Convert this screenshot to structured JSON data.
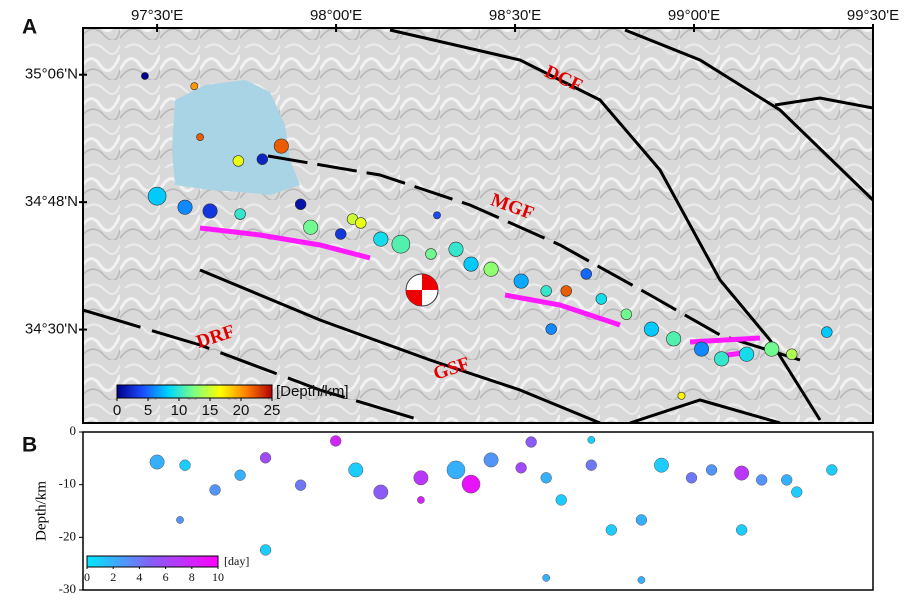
{
  "panel_a": {
    "label": "A",
    "xlim": [
      97.293,
      99.5
    ],
    "ylim": [
      34.28,
      35.21
    ],
    "lon_ticks": [
      {
        "value": 97.5,
        "label": "97°30'E"
      },
      {
        "value": 98.0,
        "label": "98°00'E"
      },
      {
        "value": 98.5,
        "label": "98°30'E"
      },
      {
        "value": 99.0,
        "label": "99°00'E"
      },
      {
        "value": 99.5,
        "label": "99°30'E"
      }
    ],
    "lat_ticks": [
      {
        "value": 35.1,
        "label": "35°06'N"
      },
      {
        "value": 34.8,
        "label": "34°48'N"
      },
      {
        "value": 34.5,
        "label": "34°30'N"
      }
    ],
    "faults": [
      "DCF",
      "MGF",
      "DRF",
      "GSF"
    ],
    "colorbar": {
      "label": "[Depth/km]",
      "clim": [
        0,
        25
      ],
      "ticks": [
        0,
        5,
        10,
        15,
        20,
        25
      ],
      "colors": [
        "#00008c",
        "#1a4dff",
        "#00d5ff",
        "#80ff80",
        "#ffff00",
        "#ff8000",
        "#b40000"
      ]
    },
    "events": {
      "lon": [
        97.5,
        97.578,
        97.648,
        97.732,
        97.794,
        97.847,
        97.901,
        97.929,
        98.013,
        98.046,
        98.125,
        98.181,
        98.265,
        98.335,
        98.377,
        98.433,
        98.517,
        98.587,
        98.643,
        98.699,
        98.741,
        98.811,
        98.881,
        98.943,
        99.021,
        99.077,
        99.147,
        99.217,
        99.273,
        99.371,
        98.601,
        97.604,
        97.466,
        97.727,
        97.62,
        98.965,
        98.282,
        98.069
      ],
      "lat": [
        34.814,
        34.788,
        34.779,
        34.772,
        34.901,
        34.932,
        34.795,
        34.741,
        34.725,
        34.76,
        34.713,
        34.701,
        34.678,
        34.689,
        34.654,
        34.642,
        34.614,
        34.591,
        34.591,
        34.631,
        34.572,
        34.536,
        34.501,
        34.478,
        34.454,
        34.431,
        34.442,
        34.454,
        34.442,
        34.494,
        34.501,
        35.073,
        35.097,
        34.897,
        34.953,
        34.344,
        34.769,
        34.751
      ],
      "depth": [
        8,
        6,
        3,
        10,
        2,
        22,
        1,
        12,
        3,
        15,
        9,
        11,
        12,
        10,
        8,
        13,
        7,
        10,
        22,
        5,
        9,
        12,
        8,
        11,
        6,
        10,
        9,
        12,
        14,
        8,
        6,
        20,
        0,
        16,
        22,
        17,
        4,
        16
      ],
      "mag": [
        5,
        4,
        4,
        3,
        3,
        4,
        3,
        4,
        3,
        3,
        4,
        5,
        3,
        4,
        4,
        4,
        4,
        3,
        3,
        3,
        3,
        3,
        4,
        4,
        4,
        4,
        4,
        4,
        3,
        3,
        3,
        2,
        2,
        3,
        2,
        2,
        2,
        3
      ]
    }
  },
  "panel_b": {
    "label": "B",
    "y_label": "Depth/km",
    "ylim": [
      -30,
      0
    ],
    "yticks": [
      0,
      -10,
      -20,
      -30
    ],
    "colorbar": {
      "label": "[day]",
      "clim": [
        0,
        10
      ],
      "ticks": [
        0,
        2,
        4,
        6,
        8,
        10
      ],
      "colors": [
        "#00e8ff",
        "#8a5cf5",
        "#ff00ff"
      ]
    },
    "events": {
      "lon": [
        97.5,
        97.578,
        97.662,
        97.732,
        97.803,
        97.901,
        97.999,
        98.055,
        98.125,
        98.237,
        98.335,
        98.377,
        98.433,
        98.517,
        98.545,
        98.587,
        98.629,
        98.713,
        98.769,
        98.853,
        98.909,
        98.993,
        99.049,
        99.133,
        99.189,
        99.259,
        99.287,
        99.385,
        99.133,
        97.803,
        98.587,
        98.713,
        97.564,
        98.237,
        98.853
      ],
      "depth": [
        -5.7,
        -6.3,
        -11.0,
        -8.2,
        -4.9,
        -10.1,
        -1.7,
        -7.2,
        -11.4,
        -8.7,
        -7.2,
        -9.9,
        -5.3,
        -6.8,
        -1.9,
        -8.7,
        -12.9,
        -6.3,
        -18.6,
        -16.7,
        -6.3,
        -8.7,
        -7.2,
        -7.8,
        -9.1,
        -9.1,
        -11.4,
        -7.2,
        -18.6,
        -22.4,
        -27.7,
        -1.5,
        -16.7,
        -12.9,
        -28.1
      ],
      "day": [
        2,
        1,
        3,
        2,
        6,
        4,
        8,
        1,
        5,
        7,
        2,
        9,
        3,
        6,
        5,
        2,
        1,
        4,
        1,
        2,
        1,
        4,
        3,
        7,
        3,
        2,
        1,
        1,
        1,
        1,
        2,
        1,
        3,
        8,
        2
      ],
      "mag": [
        4,
        3,
        3,
        3,
        3,
        3,
        3,
        4,
        4,
        4,
        5,
        5,
        4,
        3,
        3,
        3,
        3,
        3,
        3,
        3,
        4,
        3,
        3,
        4,
        3,
        3,
        3,
        3,
        3,
        3,
        2,
        2,
        2,
        2,
        2
      ]
    }
  }
}
